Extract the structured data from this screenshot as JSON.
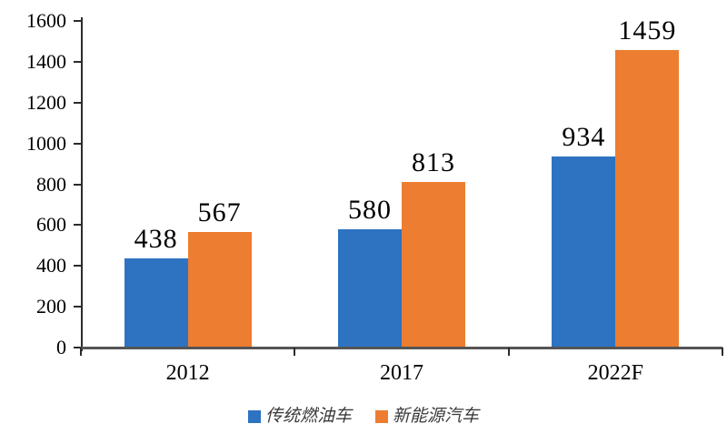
{
  "chart_data": {
    "type": "bar",
    "title": "",
    "xlabel": "",
    "ylabel": "",
    "categories": [
      "2012",
      "2017",
      "2022F"
    ],
    "series": [
      {
        "name": "传统燃油车",
        "color": "#2D73C2",
        "values": [
          438,
          580,
          934
        ]
      },
      {
        "name": "新能源汽车",
        "color": "#ED7D31",
        "values": [
          567,
          813,
          1459
        ]
      }
    ],
    "value_labels": [
      [
        "438",
        "580",
        "934"
      ],
      [
        "567",
        "813",
        "1459"
      ]
    ],
    "y_ticks": [
      "0",
      "200",
      "400",
      "600",
      "800",
      "1000",
      "1200",
      "1400",
      "1600"
    ],
    "ylim": [
      0,
      1600
    ],
    "ytick_step": 200,
    "grid": false,
    "legend_position": "bottom"
  },
  "colors": {
    "background": "#ffffff",
    "axis": "#2b2b2b",
    "baseline": "#555555",
    "text": "#000000",
    "legend_text": "#3a3a3a"
  }
}
